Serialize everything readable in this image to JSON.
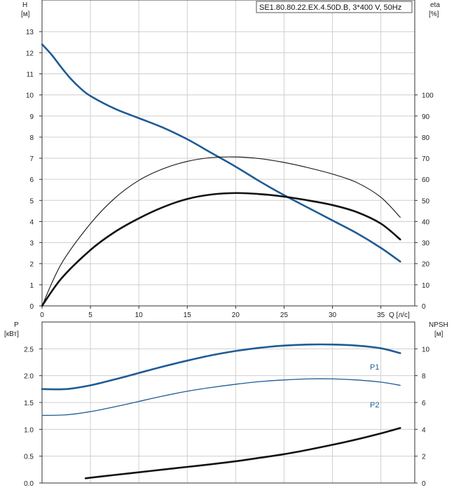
{
  "colors": {
    "blue": "#1f5b95",
    "black": "#111111",
    "grid": "#cfcfcf",
    "axis": "#333333"
  },
  "chart_data": [
    {
      "type": "line",
      "title": "SE1.80.80.22.EX.4.50D.B, 3*400 V, 50Hz",
      "x_label": "Q [л/с]",
      "xlim": [
        0,
        38.5
      ],
      "x_ticks": [
        "0",
        "5",
        "10",
        "15",
        "20",
        "25",
        "30",
        "35"
      ],
      "y_left_label": [
        "H",
        "[м]"
      ],
      "ylim_left": [
        0,
        14.5
      ],
      "y_left_ticks": [
        "0",
        "1",
        "2",
        "3",
        "4",
        "5",
        "6",
        "7",
        "8",
        "9",
        "10",
        "11",
        "12",
        "13"
      ],
      "y_right_label": [
        "eta",
        "[%]"
      ],
      "ylim_right": [
        0,
        145
      ],
      "y_right_ticks": [
        "0",
        "10",
        "20",
        "30",
        "40",
        "50",
        "60",
        "70",
        "80",
        "90",
        "100"
      ],
      "grid": true,
      "series": [
        {
          "axis": "left",
          "style": "blue-thick",
          "x": [
            0,
            1,
            2,
            3,
            4,
            5,
            7.5,
            10,
            12.5,
            15,
            17.5,
            20,
            22.5,
            25,
            27.5,
            30,
            32.5,
            35,
            37
          ],
          "values": [
            12.4,
            11.9,
            11.3,
            10.75,
            10.3,
            9.95,
            9.35,
            8.9,
            8.45,
            7.9,
            7.25,
            6.6,
            5.9,
            5.25,
            4.65,
            4.05,
            3.45,
            2.75,
            2.1
          ]
        },
        {
          "axis": "right",
          "style": "black-thin",
          "x": [
            0,
            2,
            5,
            7.5,
            10,
            12.5,
            15,
            17.5,
            20,
            22.5,
            25,
            27.5,
            30,
            32.5,
            35,
            37
          ],
          "values": [
            0,
            20,
            39,
            51,
            59.5,
            65,
            68.5,
            70.3,
            70.6,
            69.8,
            68,
            65.5,
            62.5,
            58.5,
            51.5,
            42
          ]
        },
        {
          "axis": "right",
          "style": "black-thick",
          "x": [
            0,
            2,
            5,
            7.5,
            10,
            12.5,
            15,
            17.5,
            20,
            22.5,
            25,
            27.5,
            30,
            32.5,
            35,
            37
          ],
          "values": [
            0,
            13,
            26.5,
            35,
            41.5,
            46.8,
            50.7,
            52.8,
            53.5,
            53,
            51.8,
            50,
            47.8,
            44.5,
            39,
            31.5
          ]
        }
      ]
    },
    {
      "type": "line",
      "xlim": [
        0,
        38.5
      ],
      "y_left_label": [
        "P",
        "[кВт]"
      ],
      "ylim_left": [
        0,
        3.0
      ],
      "y_left_ticks": [
        "0.0",
        "0.5",
        "1.0",
        "1.5",
        "2.0",
        "2.5"
      ],
      "y_right_label": [
        "NPSH",
        "[м]"
      ],
      "ylim_right": [
        0,
        12
      ],
      "y_right_ticks": [
        "0",
        "2",
        "4",
        "6",
        "8",
        "10"
      ],
      "grid": true,
      "series": [
        {
          "name": "P1",
          "axis": "left",
          "style": "blue-thick",
          "x": [
            0,
            2.5,
            5,
            7.5,
            10,
            12.5,
            15,
            17.5,
            20,
            22.5,
            25,
            27.5,
            30,
            32.5,
            35,
            37
          ],
          "values": [
            1.75,
            1.75,
            1.82,
            1.93,
            2.05,
            2.17,
            2.28,
            2.38,
            2.46,
            2.52,
            2.56,
            2.58,
            2.58,
            2.56,
            2.51,
            2.42
          ]
        },
        {
          "name": "P2",
          "axis": "left",
          "style": "blue-thin",
          "x": [
            0,
            2.5,
            5,
            7.5,
            10,
            12.5,
            15,
            17.5,
            20,
            22.5,
            25,
            27.5,
            30,
            32.5,
            35,
            37
          ],
          "values": [
            1.26,
            1.27,
            1.33,
            1.42,
            1.52,
            1.62,
            1.71,
            1.78,
            1.84,
            1.89,
            1.92,
            1.94,
            1.94,
            1.92,
            1.88,
            1.82
          ]
        },
        {
          "axis": "right",
          "style": "black-thick",
          "x": [
            4.5,
            7.5,
            10,
            12.5,
            15,
            17.5,
            20,
            22.5,
            25,
            27.5,
            30,
            32.5,
            35,
            37
          ],
          "values": [
            0.35,
            0.6,
            0.8,
            1.0,
            1.2,
            1.4,
            1.62,
            1.88,
            2.15,
            2.48,
            2.85,
            3.25,
            3.7,
            4.1
          ]
        }
      ]
    }
  ]
}
